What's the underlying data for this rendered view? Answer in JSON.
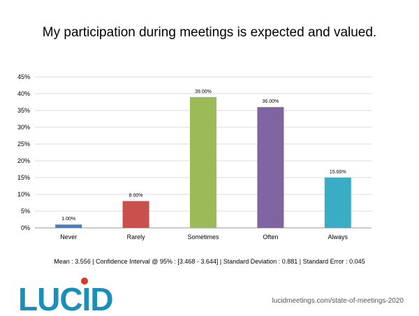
{
  "chart_data": {
    "type": "bar",
    "title": "My participation during meetings is expected and valued.",
    "categories": [
      "Never",
      "Rarely",
      "Sometimes",
      "Often",
      "Always"
    ],
    "values": [
      1.0,
      8.0,
      39.0,
      36.0,
      15.0
    ],
    "value_labels": [
      "1.00%",
      "8.00%",
      "39.00%",
      "36.00%",
      "15.00%"
    ],
    "colors": [
      "#4a7ebb",
      "#c9504d",
      "#9bbb59",
      "#8064a2",
      "#3aadc5"
    ],
    "ylim": [
      0,
      45
    ],
    "yticks": [
      0,
      5,
      10,
      15,
      20,
      25,
      30,
      35,
      40,
      45
    ],
    "ytick_labels": [
      "0%",
      "5%",
      "10%",
      "15%",
      "20%",
      "25%",
      "30%",
      "35%",
      "40%",
      "45%"
    ],
    "grid": true,
    "legend": "none",
    "xlabel": "",
    "ylabel": ""
  },
  "stats_line": "Mean : 3.556 | Confidence Interval @ 95% : [3.468 - 3.644] | Standard Deviation : 0.881 | Standard Error : 0.045",
  "logo": {
    "text": "LUCID",
    "text_color": "#1a8fb8",
    "dot_color": "#d9392b"
  },
  "source_url": "lucidmeetings.com/state-of-meetings-2020"
}
